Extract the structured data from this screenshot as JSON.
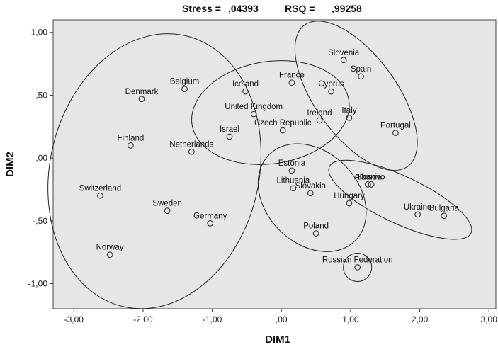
{
  "chart_data": {
    "type": "scatter",
    "header": {
      "stress_label": "Stress =",
      "stress_value": ",04393",
      "rsq_label": "RSQ =",
      "rsq_value": ",99258"
    },
    "xlabel": "DIM1",
    "ylabel": "DIM2",
    "xlim": [
      -3.3,
      3.1
    ],
    "ylim": [
      -1.2,
      1.1
    ],
    "x_ticks": [
      -3,
      -2,
      -1,
      0,
      1,
      2,
      3
    ],
    "x_tick_labels": [
      "-3,00",
      "-2,00",
      "-1,00",
      ",00",
      "1,00",
      "2,00",
      "3,00"
    ],
    "y_ticks": [
      1,
      0.5,
      0,
      -0.5,
      -1
    ],
    "y_tick_labels": [
      "1,00",
      ",50",
      ",00",
      "-,50",
      "-1,00"
    ],
    "grid": false,
    "background_color": "#e6e6e6",
    "points": [
      {
        "name": "Slovenia",
        "x": 0.9,
        "y": 0.78
      },
      {
        "name": "Spain",
        "x": 1.15,
        "y": 0.65
      },
      {
        "name": "Cyprus",
        "x": 0.72,
        "y": 0.53
      },
      {
        "name": "Italy",
        "x": 0.98,
        "y": 0.32
      },
      {
        "name": "Portugal",
        "x": 1.65,
        "y": 0.2
      },
      {
        "name": "France",
        "x": 0.15,
        "y": 0.6
      },
      {
        "name": "Iceland",
        "x": -0.52,
        "y": 0.53
      },
      {
        "name": "United Kingdom",
        "x": -0.4,
        "y": 0.35
      },
      {
        "name": "Ireland",
        "x": 0.55,
        "y": 0.3
      },
      {
        "name": "Czech Republic",
        "x": 0.02,
        "y": 0.22
      },
      {
        "name": "Israel",
        "x": -0.75,
        "y": 0.17
      },
      {
        "name": "Belgium",
        "x": -1.4,
        "y": 0.55
      },
      {
        "name": "Denmark",
        "x": -2.02,
        "y": 0.47
      },
      {
        "name": "Finland",
        "x": -2.18,
        "y": 0.1
      },
      {
        "name": "Netherlands",
        "x": -1.3,
        "y": 0.05
      },
      {
        "name": "Switzerland",
        "x": -2.62,
        "y": -0.3
      },
      {
        "name": "Sweden",
        "x": -1.65,
        "y": -0.42
      },
      {
        "name": "Germany",
        "x": -1.03,
        "y": -0.52
      },
      {
        "name": "Norway",
        "x": -2.48,
        "y": -0.77
      },
      {
        "name": "Estonia",
        "x": 0.15,
        "y": -0.1
      },
      {
        "name": "Lithuania",
        "x": 0.17,
        "y": -0.24
      },
      {
        "name": "Slovakia",
        "x": 0.42,
        "y": -0.28
      },
      {
        "name": "Hungary",
        "x": 0.98,
        "y": -0.36
      },
      {
        "name": "Poland",
        "x": 0.5,
        "y": -0.6
      },
      {
        "name": "Albania",
        "x": 1.25,
        "y": -0.21
      },
      {
        "name": "Kosovo",
        "x": 1.3,
        "y": -0.21
      },
      {
        "name": "Ukraine",
        "x": 1.97,
        "y": -0.45
      },
      {
        "name": "Bulgaria",
        "x": 2.35,
        "y": -0.46
      },
      {
        "name": "Russian Federation",
        "x": 1.1,
        "y": -0.87
      }
    ],
    "clusters": [
      {
        "members": [
          "Denmark",
          "Belgium",
          "Finland",
          "Netherlands",
          "Switzerland",
          "Sweden",
          "Germany",
          "Norway"
        ]
      },
      {
        "members": [
          "Iceland",
          "France",
          "United Kingdom",
          "Ireland",
          "Israel",
          "Czech Republic"
        ]
      },
      {
        "members": [
          "Slovenia",
          "Spain",
          "Cyprus",
          "Italy",
          "Portugal"
        ]
      },
      {
        "members": [
          "Estonia",
          "Lithuania",
          "Slovakia",
          "Hungary",
          "Poland"
        ]
      },
      {
        "members": [
          "Albania",
          "Kosovo",
          "Ukraine",
          "Bulgaria"
        ]
      },
      {
        "members": [
          "Russian Federation"
        ]
      }
    ]
  }
}
